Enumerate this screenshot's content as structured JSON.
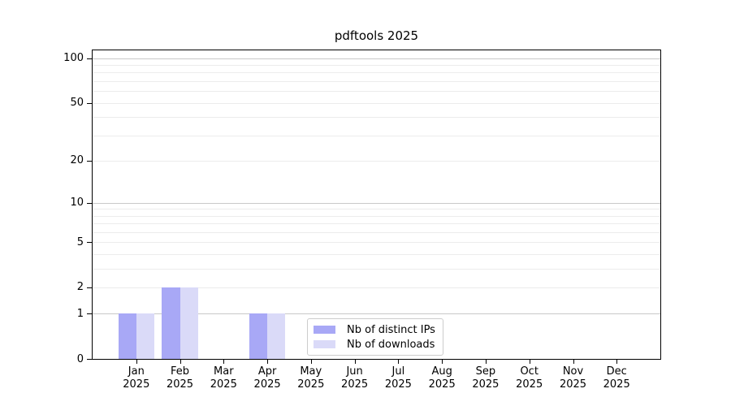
{
  "title": "pdftools 2025",
  "chart_data": {
    "type": "bar",
    "title": "pdftools 2025",
    "categories": [
      "Jan",
      "Feb",
      "Mar",
      "Apr",
      "May",
      "Jun",
      "Jul",
      "Aug",
      "Sep",
      "Oct",
      "Nov",
      "Dec"
    ],
    "year_label": "2025",
    "series": [
      {
        "name": "Nb of distinct IPs",
        "color": "#a8a8f6",
        "values": [
          1,
          2,
          0,
          1,
          0,
          0,
          0,
          0,
          0,
          0,
          0,
          0
        ]
      },
      {
        "name": "Nb of downloads",
        "color": "#dadaf8",
        "values": [
          1,
          2,
          0,
          1,
          0,
          0,
          0,
          0,
          0,
          0,
          0,
          0
        ]
      }
    ],
    "yscale": "log1p",
    "ylim": [
      0,
      113
    ],
    "y_major_ticks": [
      0,
      1,
      2,
      5,
      10,
      20,
      50,
      100
    ],
    "y_major_gridlines": [
      1,
      10,
      100
    ],
    "y_minor_gridlines": [
      2,
      3,
      4,
      5,
      6,
      7,
      8,
      9,
      20,
      30,
      40,
      50,
      60,
      70,
      80,
      90
    ],
    "grid": true,
    "legend_position": "bottom-center"
  }
}
